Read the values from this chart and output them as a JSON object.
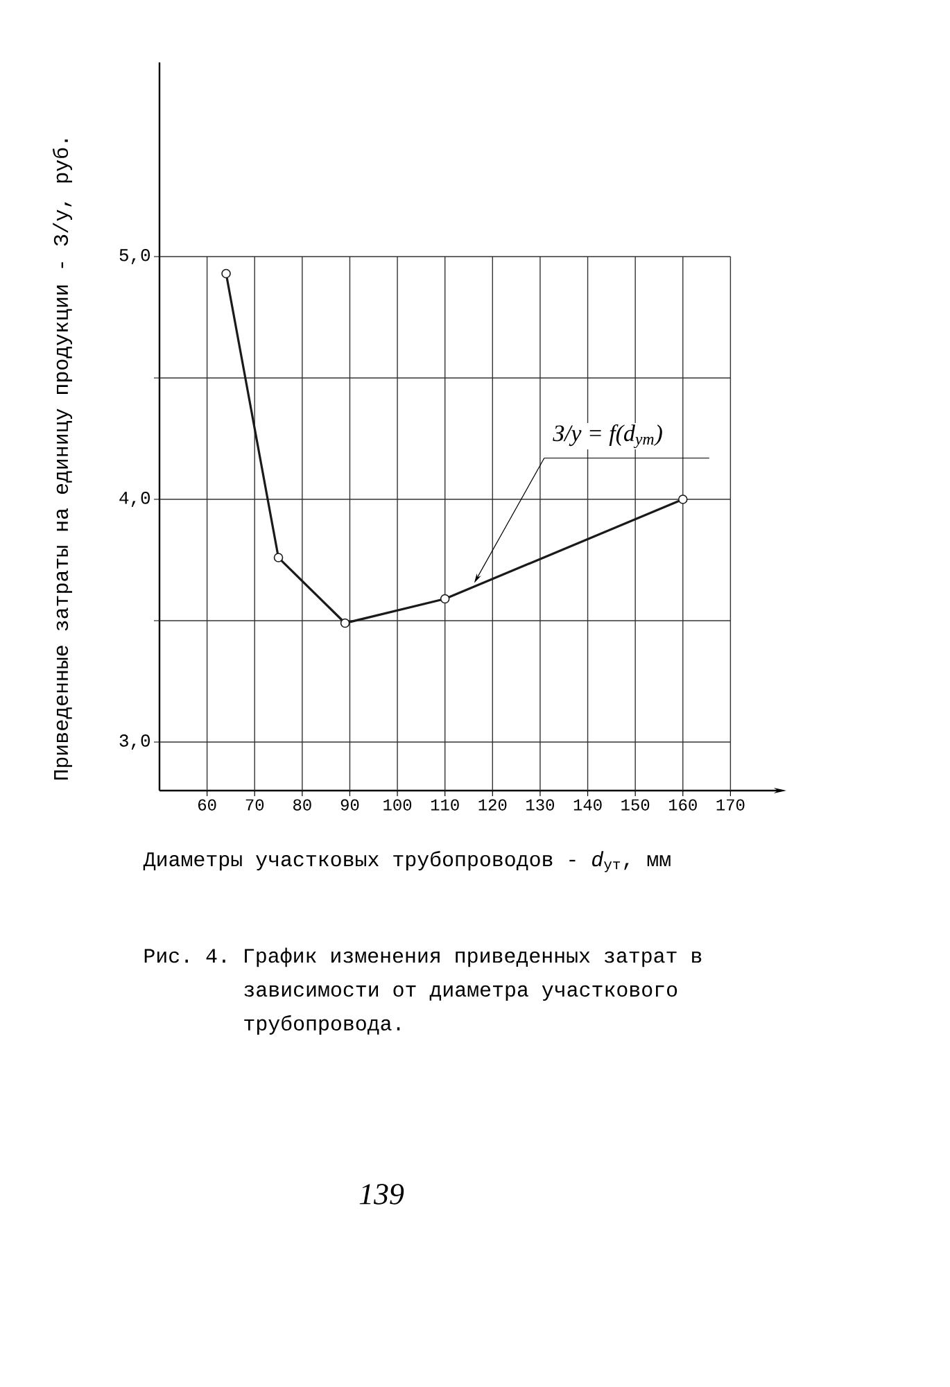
{
  "chart_data": {
    "type": "line",
    "xlabel": "Диаметры участковых трубопроводов - *d*$_{ут}$, мм",
    "ylabel": "Приведенные затраты на единицу продукции - З/у, руб.",
    "x": [
      64,
      75,
      89,
      110,
      160
    ],
    "series": [
      {
        "color": "#1a1a1a",
        "values": [
          4.93,
          3.76,
          3.49,
          3.59,
          4.0
        ]
      }
    ],
    "xlim": [
      50,
      180
    ],
    "ylim": [
      2.8,
      5.8
    ],
    "xticks": [
      60,
      70,
      80,
      90,
      100,
      110,
      120,
      130,
      140,
      150,
      160,
      170
    ],
    "yticks": [
      {
        "value": 3,
        "label": "3,0"
      },
      {
        "value": 3.5,
        "label": null
      },
      {
        "value": 4,
        "label": "4,0"
      },
      {
        "value": 4.5,
        "label": null
      },
      {
        "value": 5,
        "label": "5,0"
      }
    ],
    "grid": true,
    "marker": "circle",
    "line_style": "solid",
    "annotations": [
      {
        "text": "З/у = f(d$_{ут}$)",
        "x": 116,
        "y": 3.65
      },
      "Рис. 4. График изменения приведенных затрат в зависимости от диаметра участкового трубопровода.",
      "139"
    ]
  }
}
